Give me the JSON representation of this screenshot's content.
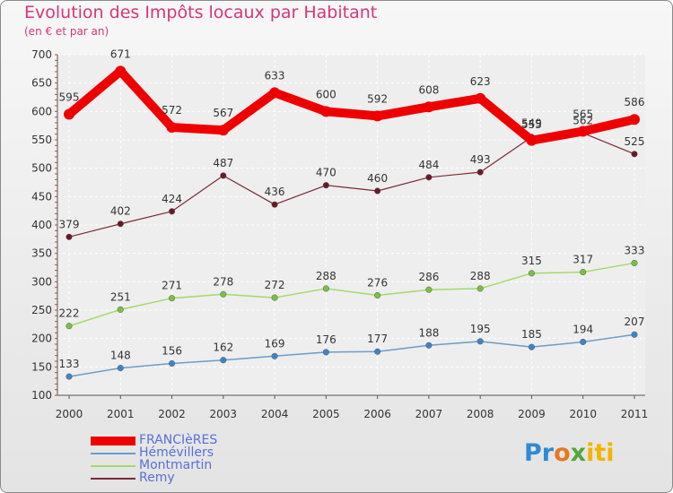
{
  "chart_data": {
    "type": "line",
    "title": "Evolution des Impôts locaux par Habitant",
    "subtitle": "(en € et par an)",
    "x": [
      "2000",
      "2001",
      "2002",
      "2003",
      "2004",
      "2005",
      "2006",
      "2007",
      "2008",
      "2009",
      "2010",
      "2011"
    ],
    "y_ticks": [
      100,
      150,
      200,
      250,
      300,
      350,
      400,
      450,
      500,
      550,
      600,
      650,
      700
    ],
    "ylim": [
      100,
      700
    ],
    "grid": true,
    "series": [
      {
        "name": "FRANCIèRES",
        "color": "#ee0000",
        "width": 10,
        "dot": "#ee0000",
        "values": [
          595,
          671,
          572,
          567,
          633,
          600,
          592,
          608,
          623,
          549,
          565,
          586
        ]
      },
      {
        "name": "Hémévillers",
        "color": "#6b9dc8",
        "width": 1.5,
        "dot": "#3d85c6",
        "values": [
          133,
          148,
          156,
          162,
          169,
          176,
          177,
          188,
          195,
          185,
          194,
          207
        ]
      },
      {
        "name": "Montmartin",
        "color": "#a4d96a",
        "width": 1.5,
        "dot": "#7ac143",
        "values": [
          222,
          251,
          271,
          278,
          272,
          288,
          276,
          286,
          288,
          315,
          317,
          333
        ]
      },
      {
        "name": "Remy",
        "color": "#7a2a35",
        "width": 1.2,
        "dot": "#6b1a25",
        "values": [
          379,
          402,
          424,
          487,
          436,
          470,
          460,
          484,
          493,
          555,
          562,
          525
        ]
      }
    ]
  },
  "legend": {
    "items": [
      {
        "label": "FRANCIèRES",
        "color": "#ee0000",
        "text_color": "#5a6fd6"
      },
      {
        "label": "Hémévillers",
        "color": "#6b9dc8",
        "text_color": "#5a6fd6"
      },
      {
        "label": "Montmartin",
        "color": "#a4d96a",
        "text_color": "#5a6fd6"
      },
      {
        "label": "Remy",
        "color": "#7a2a35",
        "text_color": "#5a6fd6"
      }
    ]
  },
  "logo": {
    "part1": "Pr",
    "part2": "o",
    "part3": "x",
    "part4": "iti"
  }
}
